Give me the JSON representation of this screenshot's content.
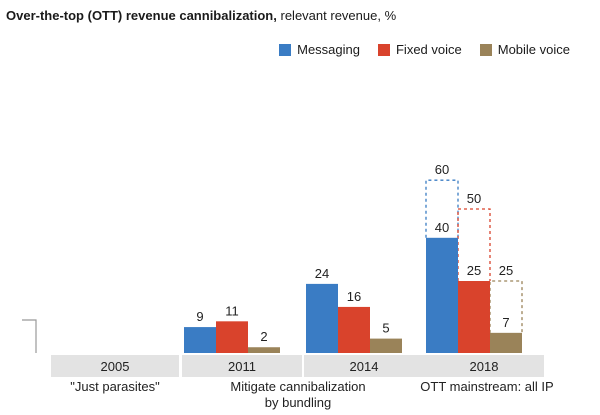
{
  "title": {
    "bold": "Over-the-top (OTT) revenue cannibalization,",
    "rest": "relevant revenue, %"
  },
  "colors": {
    "Messaging": "#3a7cc4",
    "Fixed voice": "#d9432c",
    "Mobile voice": "#9a8359",
    "category_band": "#e3e3e3",
    "axis": "#999999"
  },
  "chart_data": {
    "type": "bar",
    "title": "Over-the-top (OTT) revenue cannibalization, relevant revenue, %",
    "categories": [
      "2005",
      "2011",
      "2014",
      "2018"
    ],
    "series": [
      {
        "name": "Messaging",
        "values": [
          0,
          9,
          24,
          40
        ]
      },
      {
        "name": "Fixed voice",
        "values": [
          0,
          11,
          16,
          25
        ]
      },
      {
        "name": "Mobile voice",
        "values": [
          0,
          2,
          5,
          7
        ]
      }
    ],
    "projected": {
      "category": "2018",
      "values": [
        60,
        50,
        25
      ]
    },
    "phase_labels": [
      "\"Just parasites\"",
      "Mitigate cannibalization by bundling",
      "OTT mainstream: all IP"
    ],
    "ylim": [
      0,
      70
    ],
    "grid": false,
    "legend_position": "top-right"
  }
}
